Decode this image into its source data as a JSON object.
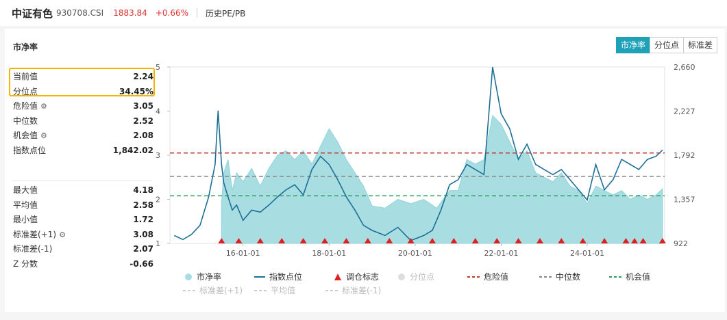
{
  "header": {
    "name": "中证有色",
    "code": "930708.CSI",
    "price": "1883.84",
    "change": "+0.66%",
    "link": "历史PE/PB"
  },
  "panel": {
    "title": "市净率",
    "tabs": [
      "市净率",
      "分位点",
      "标准差"
    ],
    "active_tab": "市净率"
  },
  "stats": [
    {
      "label": "当前值",
      "value": "2.24",
      "gear": false
    },
    {
      "label": "分位点",
      "value": "34.45%",
      "gear": false
    },
    {
      "label": "危险值",
      "value": "3.05",
      "gear": true
    },
    {
      "label": "中位数",
      "value": "2.52",
      "gear": false
    },
    {
      "label": "机会值",
      "value": "2.08",
      "gear": true
    },
    {
      "label": "指数点位",
      "value": "1,842.02",
      "gear": false
    }
  ],
  "stats2": [
    {
      "label": "最大值",
      "value": "4.18",
      "gear": false
    },
    {
      "label": "平均值",
      "value": "2.58",
      "gear": false
    },
    {
      "label": "最小值",
      "value": "1.72",
      "gear": false
    },
    {
      "label": "标准差(+1)",
      "value": "3.08",
      "gear": true
    },
    {
      "label": "标准差(-1)",
      "value": "2.07",
      "gear": false
    },
    {
      "label": "Z 分数",
      "value": "-0.66",
      "gear": false
    }
  ],
  "gear_icon": "⚙",
  "legend": {
    "row1": [
      "市净率",
      "指数点位",
      "调仓标志",
      "分位点",
      "危险值",
      "中位数",
      "机会值"
    ],
    "row2": [
      "标准差(+1)",
      "平均值",
      "标准差(-1)"
    ]
  },
  "colors": {
    "area": "#a8dde2",
    "index_line": "#1e6f96",
    "danger": "#c0392b",
    "median": "#888888",
    "opportunity": "#27a05a",
    "marker": "#e02020",
    "accent": "#1fa2b8",
    "highlight": "#f4b400"
  },
  "chart_data": {
    "type": "line",
    "x_ticks": [
      "16-01-01",
      "18-01-01",
      "20-01-01",
      "22-01-01",
      "24-01-01"
    ],
    "y_left_ticks": [
      "1",
      "2",
      "3",
      "4",
      "5"
    ],
    "y_left_range": [
      1,
      5
    ],
    "y_right_ticks": [
      "922",
      "1,357",
      "1,792",
      "2,227",
      "2,660"
    ],
    "y_right_range": [
      922,
      2660
    ],
    "x_range": [
      2014.3,
      2025.8
    ],
    "reference_lines": {
      "danger": 3.05,
      "median": 2.52,
      "opportunity": 2.08
    },
    "series": [
      {
        "name": "市净率",
        "axis": "left",
        "points": [
          [
            2015.5,
            1.9
          ],
          [
            2015.55,
            2.6
          ],
          [
            2015.65,
            2.9
          ],
          [
            2015.75,
            2.2
          ],
          [
            2015.85,
            2.6
          ],
          [
            2016.0,
            2.4
          ],
          [
            2016.2,
            2.7
          ],
          [
            2016.4,
            2.3
          ],
          [
            2016.6,
            2.7
          ],
          [
            2016.8,
            3.0
          ],
          [
            2017.0,
            3.1
          ],
          [
            2017.2,
            2.9
          ],
          [
            2017.4,
            3.1
          ],
          [
            2017.6,
            2.8
          ],
          [
            2017.8,
            3.2
          ],
          [
            2018.0,
            3.6
          ],
          [
            2018.2,
            3.3
          ],
          [
            2018.4,
            2.9
          ],
          [
            2018.6,
            2.6
          ],
          [
            2018.8,
            2.3
          ],
          [
            2019.0,
            1.85
          ],
          [
            2019.3,
            1.8
          ],
          [
            2019.6,
            2.0
          ],
          [
            2019.9,
            1.9
          ],
          [
            2020.2,
            2.0
          ],
          [
            2020.5,
            1.8
          ],
          [
            2020.8,
            2.2
          ],
          [
            2021.0,
            2.2
          ],
          [
            2021.2,
            2.9
          ],
          [
            2021.4,
            2.8
          ],
          [
            2021.6,
            2.9
          ],
          [
            2021.8,
            3.9
          ],
          [
            2022.0,
            3.7
          ],
          [
            2022.2,
            3.3
          ],
          [
            2022.4,
            2.9
          ],
          [
            2022.6,
            3.1
          ],
          [
            2022.8,
            2.6
          ],
          [
            2023.0,
            2.5
          ],
          [
            2023.2,
            2.4
          ],
          [
            2023.4,
            2.6
          ],
          [
            2023.6,
            2.3
          ],
          [
            2023.8,
            2.2
          ],
          [
            2024.0,
            1.9
          ],
          [
            2024.2,
            2.3
          ],
          [
            2024.4,
            2.2
          ],
          [
            2024.6,
            2.1
          ],
          [
            2024.8,
            2.2
          ],
          [
            2025.0,
            2.0
          ],
          [
            2025.2,
            2.1
          ],
          [
            2025.4,
            2.0
          ],
          [
            2025.6,
            2.1
          ],
          [
            2025.75,
            2.24
          ]
        ]
      },
      {
        "name": "指数点位",
        "axis": "right",
        "points": [
          [
            2014.4,
            1000
          ],
          [
            2014.6,
            960
          ],
          [
            2014.8,
            1010
          ],
          [
            2015.0,
            1100
          ],
          [
            2015.2,
            1380
          ],
          [
            2015.35,
            1700
          ],
          [
            2015.42,
            2230
          ],
          [
            2015.5,
            1700
          ],
          [
            2015.55,
            1520
          ],
          [
            2015.65,
            1380
          ],
          [
            2015.75,
            1250
          ],
          [
            2015.85,
            1300
          ],
          [
            2016.0,
            1150
          ],
          [
            2016.2,
            1250
          ],
          [
            2016.4,
            1230
          ],
          [
            2016.6,
            1300
          ],
          [
            2016.8,
            1380
          ],
          [
            2017.0,
            1450
          ],
          [
            2017.2,
            1500
          ],
          [
            2017.4,
            1400
          ],
          [
            2017.6,
            1650
          ],
          [
            2017.8,
            1780
          ],
          [
            2018.0,
            1700
          ],
          [
            2018.2,
            1550
          ],
          [
            2018.4,
            1380
          ],
          [
            2018.6,
            1250
          ],
          [
            2018.8,
            1100
          ],
          [
            2019.0,
            1050
          ],
          [
            2019.3,
            1000
          ],
          [
            2019.6,
            1080
          ],
          [
            2019.9,
            950
          ],
          [
            2020.2,
            1000
          ],
          [
            2020.4,
            1050
          ],
          [
            2020.6,
            1250
          ],
          [
            2020.8,
            1500
          ],
          [
            2021.0,
            1550
          ],
          [
            2021.2,
            1700
          ],
          [
            2021.4,
            1650
          ],
          [
            2021.6,
            1600
          ],
          [
            2021.8,
            2660
          ],
          [
            2022.0,
            2200
          ],
          [
            2022.2,
            2050
          ],
          [
            2022.4,
            1750
          ],
          [
            2022.6,
            1900
          ],
          [
            2022.8,
            1700
          ],
          [
            2023.0,
            1650
          ],
          [
            2023.2,
            1600
          ],
          [
            2023.4,
            1650
          ],
          [
            2023.6,
            1550
          ],
          [
            2023.8,
            1450
          ],
          [
            2024.0,
            1350
          ],
          [
            2024.2,
            1700
          ],
          [
            2024.4,
            1450
          ],
          [
            2024.6,
            1550
          ],
          [
            2024.8,
            1750
          ],
          [
            2025.0,
            1700
          ],
          [
            2025.2,
            1650
          ],
          [
            2025.4,
            1750
          ],
          [
            2025.6,
            1780
          ],
          [
            2025.75,
            1842
          ]
        ]
      }
    ],
    "rebalance_markers": [
      2015.5,
      2015.9,
      2016.4,
      2016.9,
      2017.4,
      2017.9,
      2018.4,
      2018.9,
      2019.4,
      2019.9,
      2020.4,
      2020.9,
      2021.4,
      2021.9,
      2022.4,
      2022.9,
      2023.4,
      2023.9,
      2024.4,
      2024.9,
      2025.1,
      2025.3,
      2025.75
    ]
  }
}
